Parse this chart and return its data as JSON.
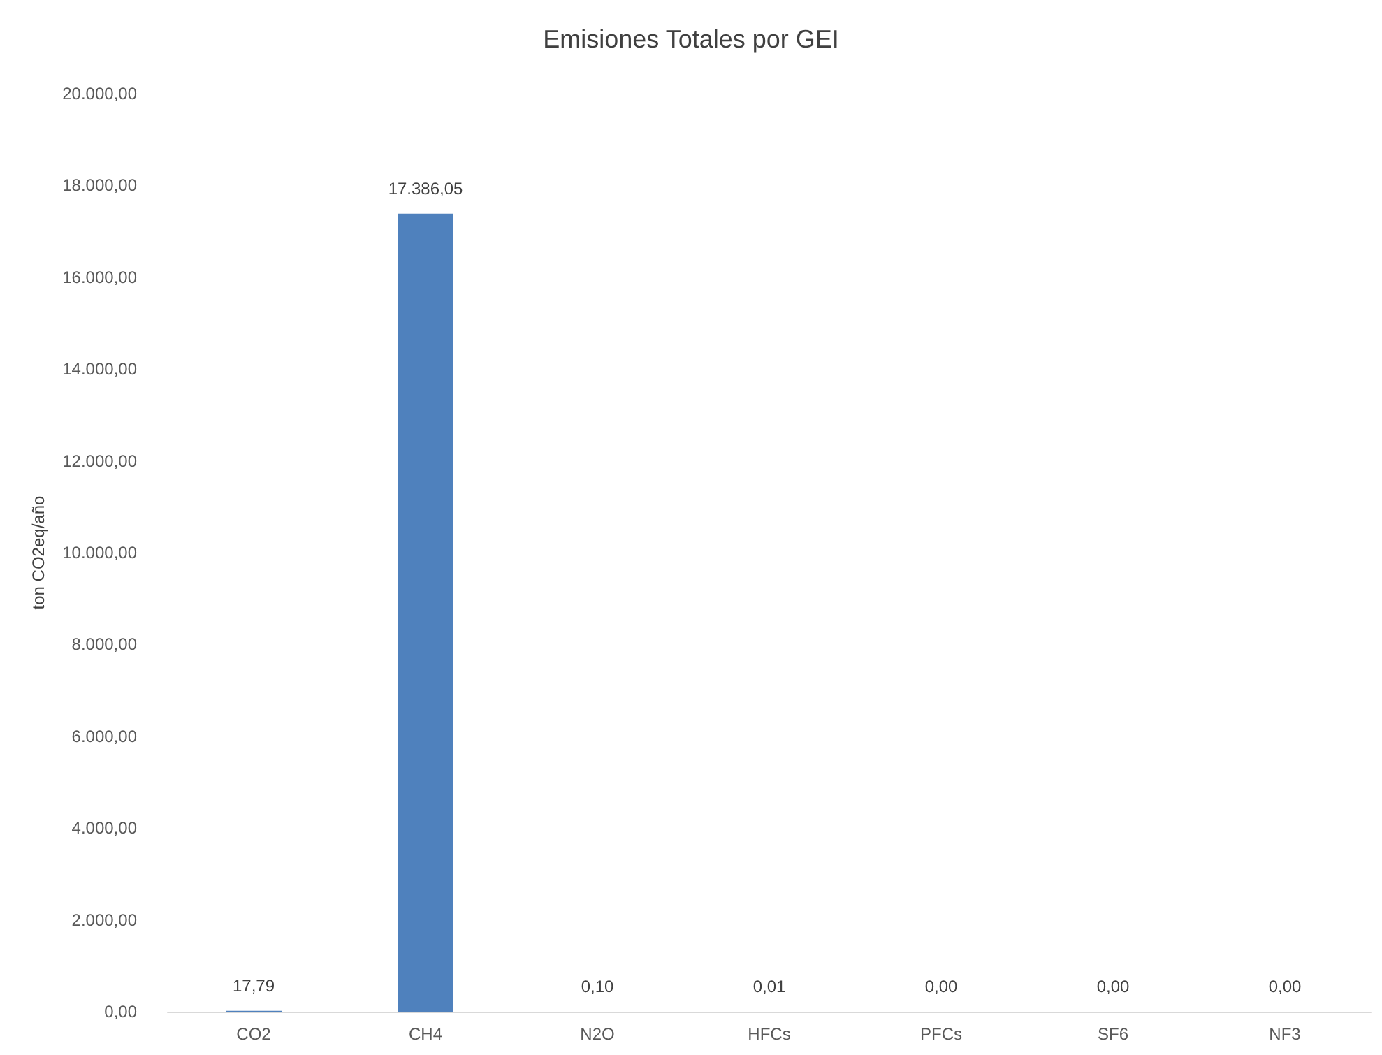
{
  "chart_data": {
    "type": "bar",
    "title": "Emisiones Totales por GEI",
    "ylabel": "ton CO2eq/año",
    "categories": [
      "CO2",
      "CH4",
      "N2O",
      "HFCs",
      "PFCs",
      "SF6",
      "NF3"
    ],
    "values": [
      17.79,
      17386.05,
      0.1,
      0.01,
      0,
      0,
      0
    ],
    "value_labels": [
      "17,79",
      "17.386,05",
      "0,10",
      "0,01",
      "0,00",
      "0,00",
      "0,00"
    ],
    "color": "#4f81bd",
    "ylim": [
      0,
      20000
    ],
    "yticks": [
      {
        "value": 0,
        "label": "0,00"
      },
      {
        "value": 2000,
        "label": "2.000,00"
      },
      {
        "value": 4000,
        "label": "4.000,00"
      },
      {
        "value": 6000,
        "label": "6.000,00"
      },
      {
        "value": 8000,
        "label": "8.000,00"
      },
      {
        "value": 10000,
        "label": "10.000,00"
      },
      {
        "value": 12000,
        "label": "12.000,00"
      },
      {
        "value": 14000,
        "label": "14.000,00"
      },
      {
        "value": 16000,
        "label": "16.000,00"
      },
      {
        "value": 18000,
        "label": "18.000,00"
      },
      {
        "value": 20000,
        "label": "20.000,00"
      }
    ],
    "grid": false
  }
}
